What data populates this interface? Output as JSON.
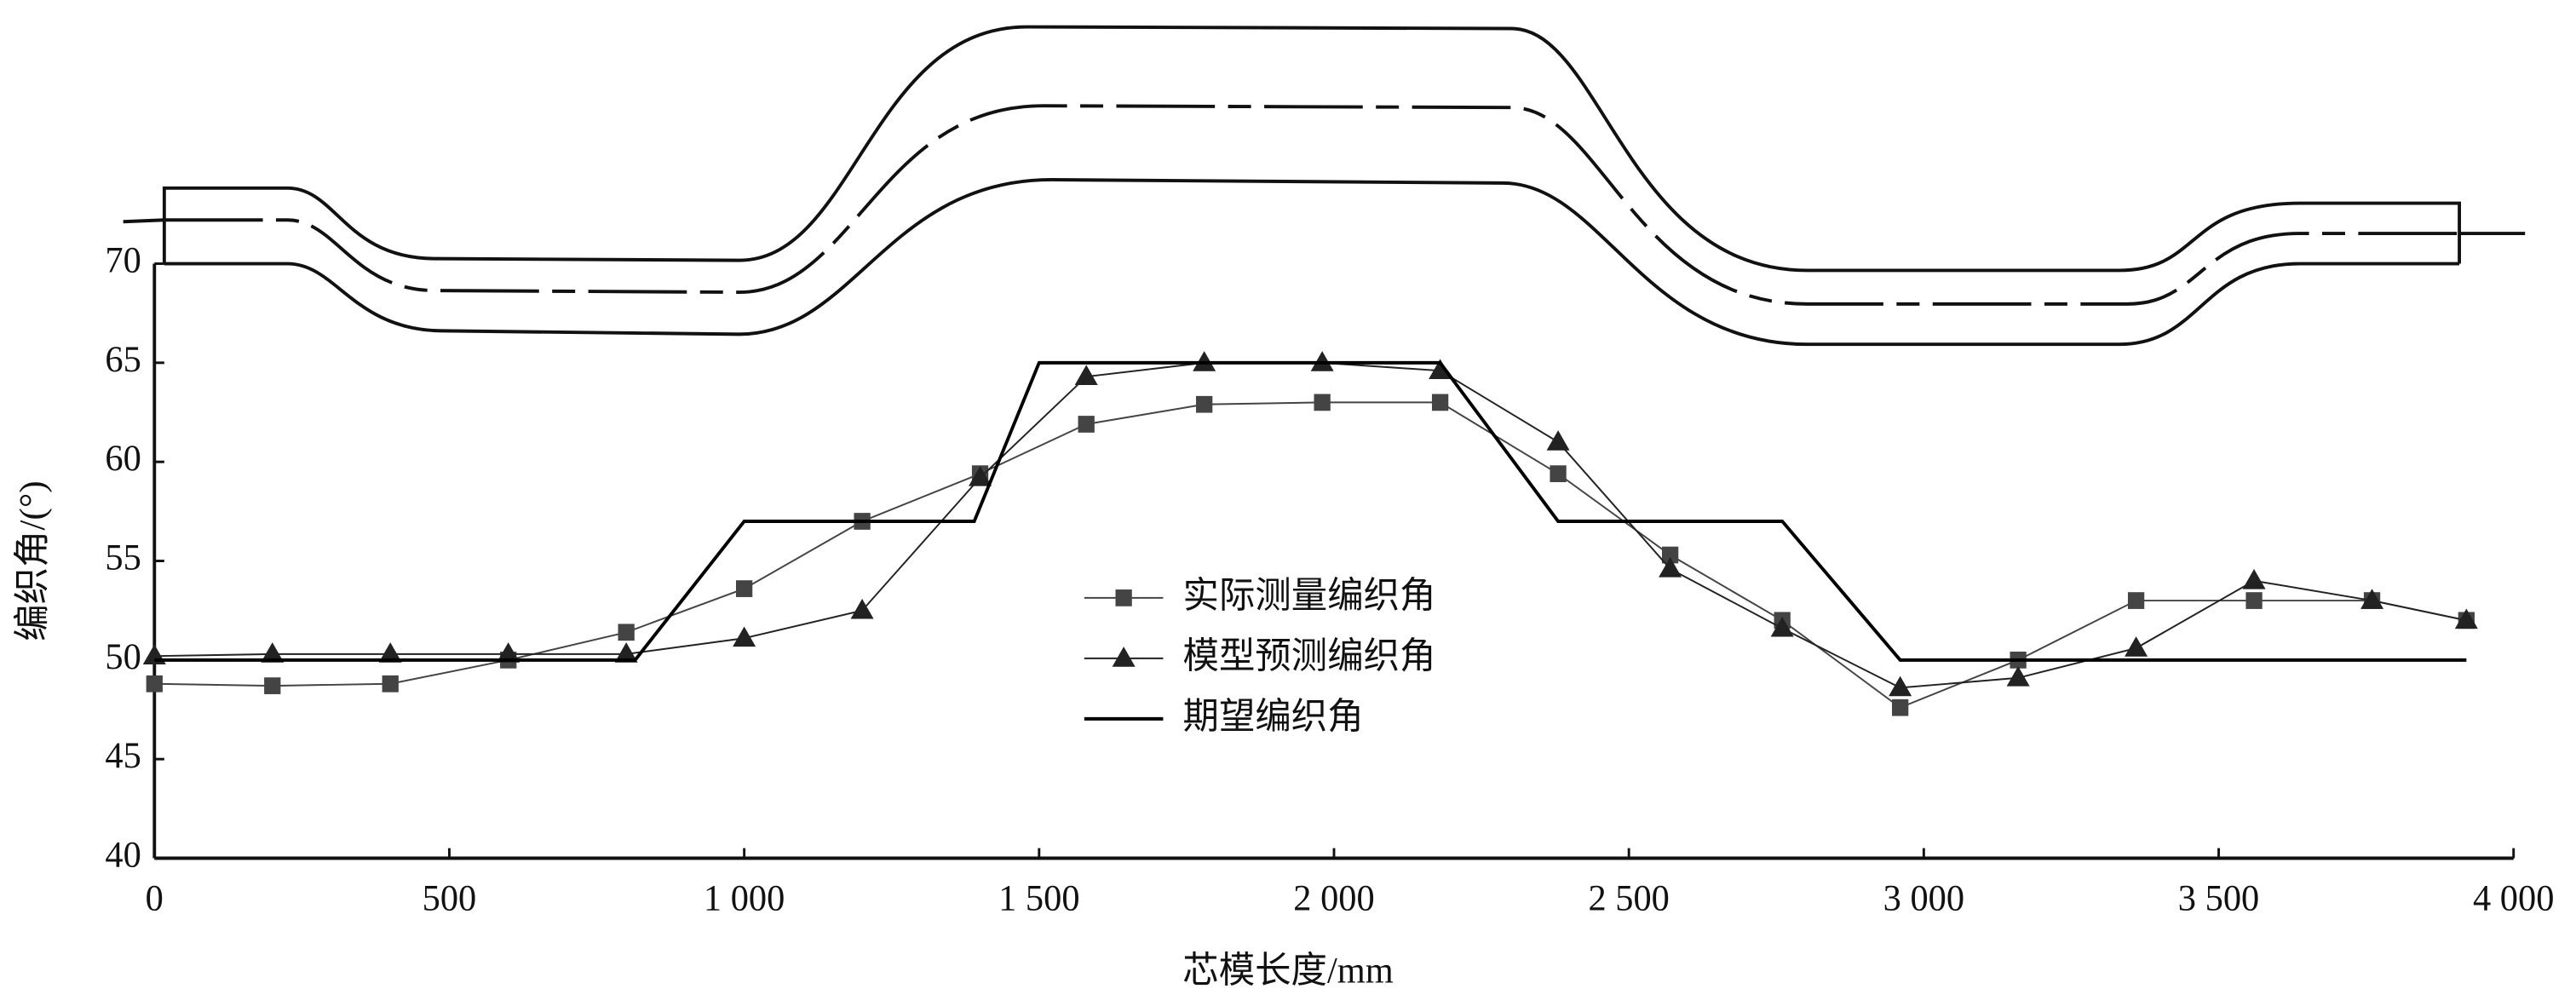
{
  "chart_data": {
    "type": "line",
    "x_label": "芯模长度/mm",
    "y_label": "编织角/(°)",
    "xlim": [
      0,
      4000
    ],
    "xticks": [
      0,
      500,
      {
        "value": 1000,
        "label": "1 000"
      },
      {
        "value": 1500,
        "label": "1 500"
      },
      {
        "value": 2000,
        "label": "2 000"
      },
      {
        "value": 2500,
        "label": "2 500"
      },
      {
        "value": 3000,
        "label": "3 000"
      },
      {
        "value": 3500,
        "label": "3 500"
      },
      {
        "value": 4000,
        "label": "4 000"
      }
    ],
    "ylim": [
      40,
      70
    ],
    "yticks": [
      40,
      45,
      50,
      55,
      60,
      65,
      70
    ],
    "series": [
      {
        "name": "实际测量编织角",
        "color": "#444444",
        "marker": "square",
        "x": [
          0,
          200,
          400,
          600,
          800,
          1000,
          1200,
          1400,
          1580,
          1780,
          1980,
          2180,
          2380,
          2570,
          2760,
          2960,
          3160,
          3360,
          3560,
          3760,
          3920
        ],
        "values": [
          48.8,
          48.7,
          48.8,
          50.0,
          51.4,
          53.6,
          57.0,
          59.4,
          61.9,
          62.9,
          63.0,
          63.0,
          59.4,
          55.3,
          52.0,
          47.6,
          50.0,
          53.0,
          53.0,
          53.0,
          52.0
        ]
      },
      {
        "name": "模型预测编织角",
        "color": "#222222",
        "marker": "triangle",
        "x": [
          0,
          200,
          400,
          600,
          800,
          1000,
          1200,
          1400,
          1580,
          1780,
          1980,
          2180,
          2380,
          2570,
          2760,
          2960,
          3160,
          3360,
          3560,
          3760,
          3920
        ],
        "values": [
          50.2,
          50.3,
          50.3,
          50.3,
          50.3,
          51.1,
          52.5,
          59.2,
          64.3,
          65.0,
          65.0,
          64.6,
          61.0,
          54.6,
          51.6,
          48.6,
          49.1,
          50.6,
          54.0,
          53.0,
          52.0
        ]
      },
      {
        "name": "期望编织角",
        "color": "#000000",
        "marker": "none",
        "x": [
          0,
          815,
          1000,
          1390,
          1500,
          2180,
          2380,
          2760,
          2960,
          3920
        ],
        "values": [
          50,
          50,
          57,
          57,
          65,
          65,
          57,
          57,
          50,
          50
        ]
      }
    ]
  }
}
